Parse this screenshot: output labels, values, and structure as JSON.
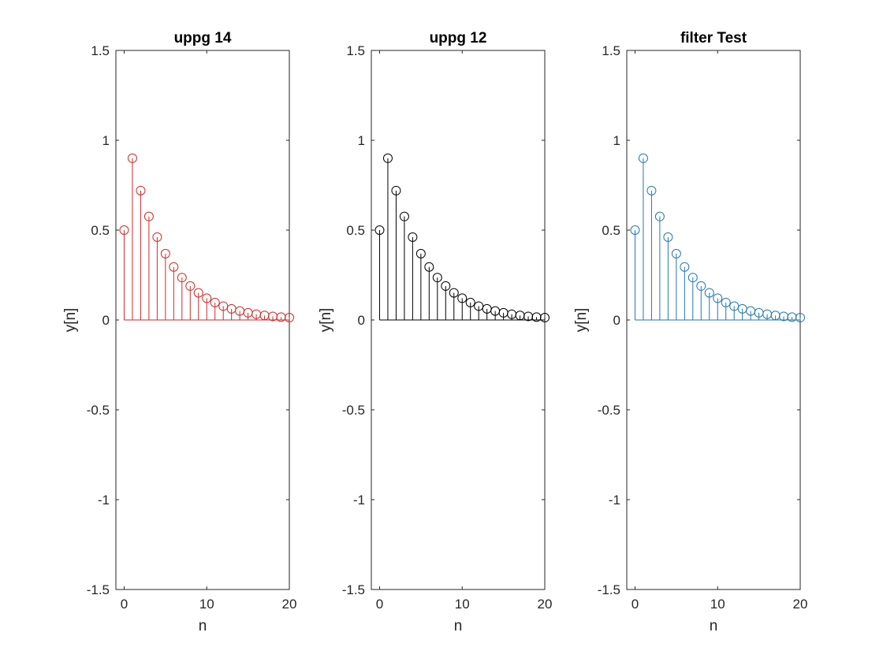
{
  "chart_data": [
    {
      "type": "stem",
      "title": "uppg 14",
      "xlabel": "n",
      "ylabel": "y[n]",
      "xlim": [
        -1,
        20
      ],
      "ylim": [
        -1.5,
        1.5
      ],
      "xticks": [
        "0",
        "10",
        "20"
      ],
      "yticks": [
        "-1.5",
        "-1",
        "-0.5",
        "0",
        "0.5",
        "1",
        "1.5"
      ],
      "grid": false,
      "series": [
        {
          "color": "#d62728",
          "marker": "circle",
          "x": [
            0,
            1,
            2,
            3,
            4,
            5,
            6,
            7,
            8,
            9,
            10,
            11,
            12,
            13,
            14,
            15,
            16,
            17,
            18,
            19,
            20
          ],
          "values": [
            0.5,
            0.9,
            0.72,
            0.576,
            0.461,
            0.369,
            0.295,
            0.236,
            0.189,
            0.151,
            0.121,
            0.097,
            0.077,
            0.062,
            0.05,
            0.04,
            0.032,
            0.025,
            0.02,
            0.016,
            0.013
          ]
        }
      ]
    },
    {
      "type": "stem",
      "title": "uppg 12",
      "xlabel": "n",
      "ylabel": "y[n]",
      "xlim": [
        -1,
        20
      ],
      "ylim": [
        -1.5,
        1.5
      ],
      "xticks": [
        "0",
        "10",
        "20"
      ],
      "yticks": [
        "-1.5",
        "-1",
        "-0.5",
        "0",
        "0.5",
        "1",
        "1.5"
      ],
      "grid": false,
      "series": [
        {
          "color": "#000000",
          "marker": "circle",
          "x": [
            0,
            1,
            2,
            3,
            4,
            5,
            6,
            7,
            8,
            9,
            10,
            11,
            12,
            13,
            14,
            15,
            16,
            17,
            18,
            19,
            20
          ],
          "values": [
            0.5,
            0.9,
            0.72,
            0.576,
            0.461,
            0.369,
            0.295,
            0.236,
            0.189,
            0.151,
            0.121,
            0.097,
            0.077,
            0.062,
            0.05,
            0.04,
            0.032,
            0.025,
            0.02,
            0.016,
            0.013
          ]
        }
      ]
    },
    {
      "type": "stem",
      "title": "filter Test",
      "xlabel": "n",
      "ylabel": "y[n]",
      "xlim": [
        -1,
        20
      ],
      "ylim": [
        -1.5,
        1.5
      ],
      "xticks": [
        "0",
        "10",
        "20"
      ],
      "yticks": [
        "-1.5",
        "-1",
        "-0.5",
        "0",
        "0.5",
        "1",
        "1.5"
      ],
      "grid": false,
      "series": [
        {
          "color": "#1f77b4",
          "marker": "circle",
          "x": [
            0,
            1,
            2,
            3,
            4,
            5,
            6,
            7,
            8,
            9,
            10,
            11,
            12,
            13,
            14,
            15,
            16,
            17,
            18,
            19,
            20
          ],
          "values": [
            0.5,
            0.9,
            0.72,
            0.576,
            0.461,
            0.369,
            0.295,
            0.236,
            0.189,
            0.151,
            0.121,
            0.097,
            0.077,
            0.062,
            0.05,
            0.04,
            0.032,
            0.025,
            0.02,
            0.016,
            0.013
          ]
        }
      ]
    }
  ]
}
